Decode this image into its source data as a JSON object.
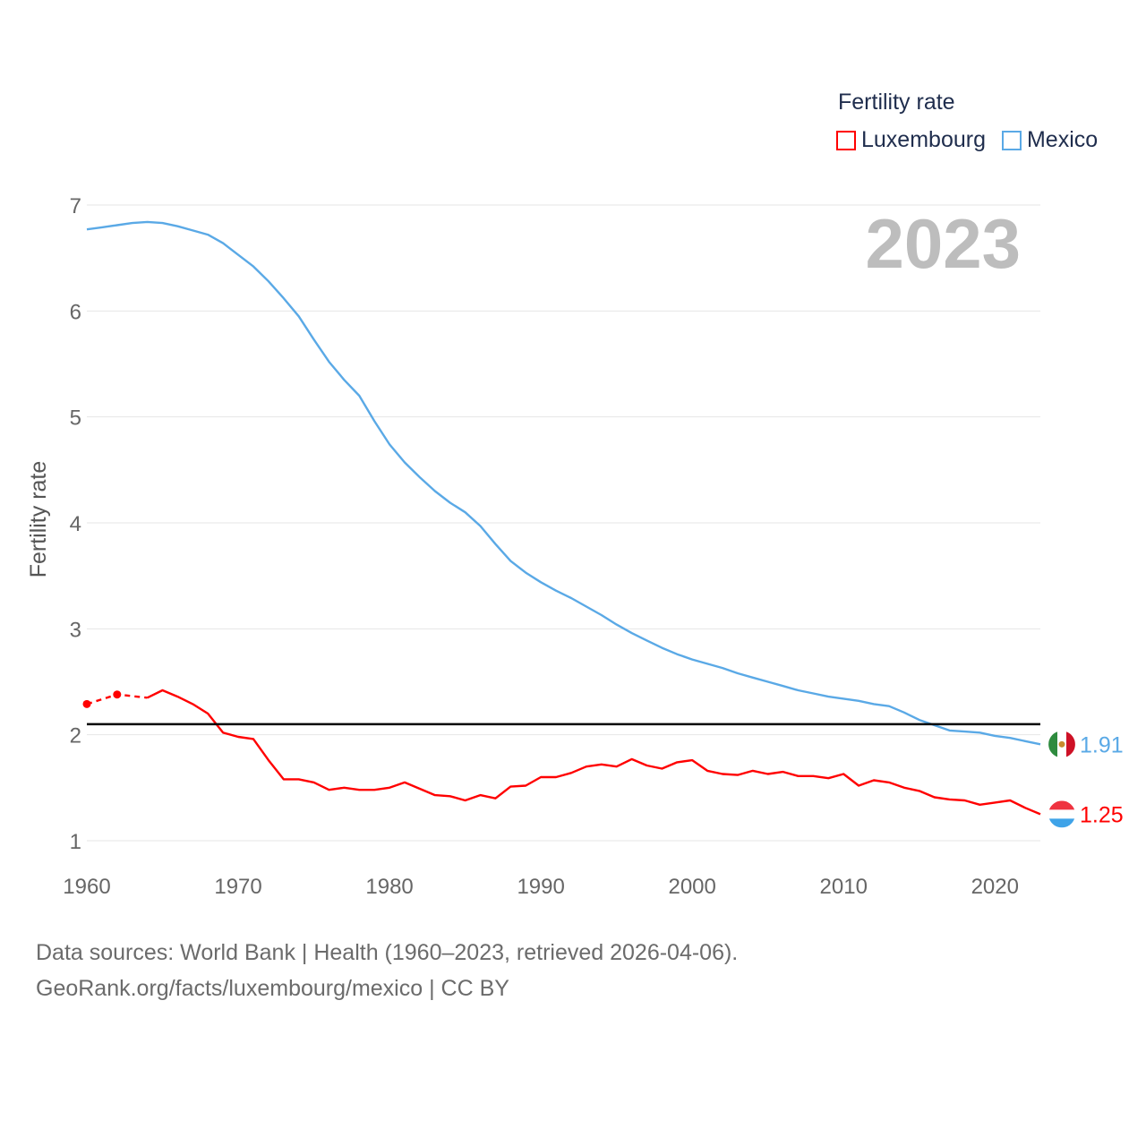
{
  "legend": {
    "title": "Fertility rate"
  },
  "footer": {
    "line1": "Data sources: World Bank | Health (1960–2023, retrieved 2026-04-06).",
    "line2": "GeoRank.org/facts/luxembourg/mexico | CC BY"
  },
  "year_label": "2023",
  "colors": {
    "luxembourg": "#ff0000",
    "mexico": "#5aa9e6",
    "reference_line": "#000000",
    "grid": "#e6e6e6"
  },
  "chart_data": {
    "type": "line",
    "ylabel": "Fertility rate",
    "xlabel": "",
    "xlim": [
      1960,
      2023
    ],
    "ylim": [
      1,
      7
    ],
    "xticks": [
      1960,
      1970,
      1980,
      1990,
      2000,
      2010,
      2020
    ],
    "yticks": [
      1,
      2,
      3,
      4,
      5,
      6,
      7
    ],
    "reference_line": 2.1,
    "series": [
      {
        "name": "Luxembourg",
        "key": "luxembourg",
        "end_label": "1.25",
        "dashed_points": [
          [
            1960,
            2.29
          ],
          [
            1962,
            2.38
          ],
          [
            1964,
            2.35
          ]
        ],
        "points": [
          [
            1964,
            2.35
          ],
          [
            1965,
            2.42
          ],
          [
            1966,
            2.36
          ],
          [
            1967,
            2.29
          ],
          [
            1968,
            2.2
          ],
          [
            1969,
            2.02
          ],
          [
            1970,
            1.98
          ],
          [
            1971,
            1.96
          ],
          [
            1972,
            1.76
          ],
          [
            1973,
            1.58
          ],
          [
            1974,
            1.58
          ],
          [
            1975,
            1.55
          ],
          [
            1976,
            1.48
          ],
          [
            1977,
            1.5
          ],
          [
            1978,
            1.48
          ],
          [
            1979,
            1.48
          ],
          [
            1980,
            1.5
          ],
          [
            1981,
            1.55
          ],
          [
            1982,
            1.49
          ],
          [
            1983,
            1.43
          ],
          [
            1984,
            1.42
          ],
          [
            1985,
            1.38
          ],
          [
            1986,
            1.43
          ],
          [
            1987,
            1.4
          ],
          [
            1988,
            1.51
          ],
          [
            1989,
            1.52
          ],
          [
            1990,
            1.6
          ],
          [
            1991,
            1.6
          ],
          [
            1992,
            1.64
          ],
          [
            1993,
            1.7
          ],
          [
            1994,
            1.72
          ],
          [
            1995,
            1.7
          ],
          [
            1996,
            1.77
          ],
          [
            1997,
            1.71
          ],
          [
            1998,
            1.68
          ],
          [
            1999,
            1.74
          ],
          [
            2000,
            1.76
          ],
          [
            2001,
            1.66
          ],
          [
            2002,
            1.63
          ],
          [
            2003,
            1.62
          ],
          [
            2004,
            1.66
          ],
          [
            2005,
            1.63
          ],
          [
            2006,
            1.65
          ],
          [
            2007,
            1.61
          ],
          [
            2008,
            1.61
          ],
          [
            2009,
            1.59
          ],
          [
            2010,
            1.63
          ],
          [
            2011,
            1.52
          ],
          [
            2012,
            1.57
          ],
          [
            2013,
            1.55
          ],
          [
            2014,
            1.5
          ],
          [
            2015,
            1.47
          ],
          [
            2016,
            1.41
          ],
          [
            2017,
            1.39
          ],
          [
            2018,
            1.38
          ],
          [
            2019,
            1.34
          ],
          [
            2020,
            1.36
          ],
          [
            2021,
            1.38
          ],
          [
            2022,
            1.31
          ],
          [
            2023,
            1.25
          ]
        ]
      },
      {
        "name": "Mexico",
        "key": "mexico",
        "end_label": "1.91",
        "dashed_points": [],
        "points": [
          [
            1960,
            6.77
          ],
          [
            1961,
            6.79
          ],
          [
            1962,
            6.81
          ],
          [
            1963,
            6.83
          ],
          [
            1964,
            6.84
          ],
          [
            1965,
            6.83
          ],
          [
            1966,
            6.8
          ],
          [
            1967,
            6.76
          ],
          [
            1968,
            6.72
          ],
          [
            1969,
            6.64
          ],
          [
            1970,
            6.53
          ],
          [
            1971,
            6.42
          ],
          [
            1972,
            6.28
          ],
          [
            1973,
            6.12
          ],
          [
            1974,
            5.95
          ],
          [
            1975,
            5.73
          ],
          [
            1976,
            5.52
          ],
          [
            1977,
            5.35
          ],
          [
            1978,
            5.2
          ],
          [
            1979,
            4.96
          ],
          [
            1980,
            4.74
          ],
          [
            1981,
            4.57
          ],
          [
            1982,
            4.43
          ],
          [
            1983,
            4.3
          ],
          [
            1984,
            4.19
          ],
          [
            1985,
            4.1
          ],
          [
            1986,
            3.97
          ],
          [
            1987,
            3.8
          ],
          [
            1988,
            3.64
          ],
          [
            1989,
            3.53
          ],
          [
            1990,
            3.44
          ],
          [
            1991,
            3.36
          ],
          [
            1992,
            3.29
          ],
          [
            1993,
            3.21
          ],
          [
            1994,
            3.13
          ],
          [
            1995,
            3.04
          ],
          [
            1996,
            2.96
          ],
          [
            1997,
            2.89
          ],
          [
            1998,
            2.82
          ],
          [
            1999,
            2.76
          ],
          [
            2000,
            2.71
          ],
          [
            2001,
            2.67
          ],
          [
            2002,
            2.63
          ],
          [
            2003,
            2.58
          ],
          [
            2004,
            2.54
          ],
          [
            2005,
            2.5
          ],
          [
            2006,
            2.46
          ],
          [
            2007,
            2.42
          ],
          [
            2008,
            2.39
          ],
          [
            2009,
            2.36
          ],
          [
            2010,
            2.34
          ],
          [
            2011,
            2.32
          ],
          [
            2012,
            2.29
          ],
          [
            2013,
            2.27
          ],
          [
            2014,
            2.21
          ],
          [
            2015,
            2.14
          ],
          [
            2016,
            2.09
          ],
          [
            2017,
            2.04
          ],
          [
            2018,
            2.03
          ],
          [
            2019,
            2.02
          ],
          [
            2020,
            1.99
          ],
          [
            2021,
            1.97
          ],
          [
            2022,
            1.94
          ],
          [
            2023,
            1.91
          ]
        ]
      }
    ]
  }
}
